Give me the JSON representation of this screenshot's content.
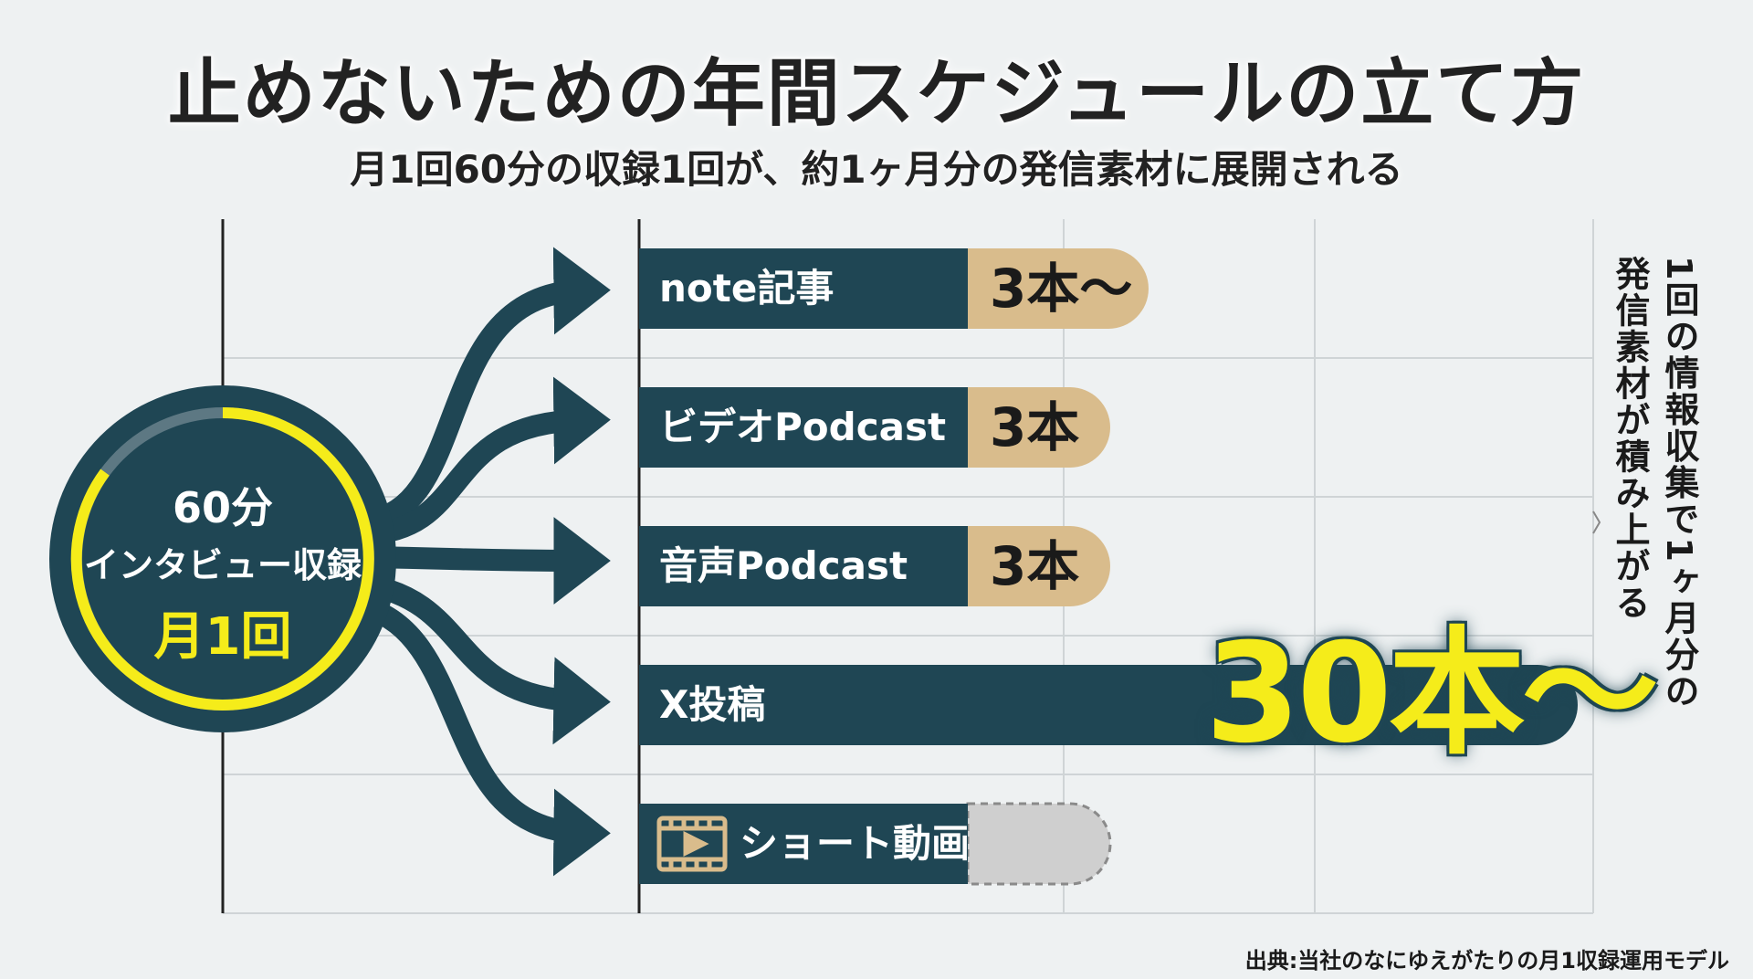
{
  "header": {
    "title": "止めないための年間スケジュールの立て方",
    "subtitle": "月1回60分の収録1回が、約1ヶ月分の発信素材に展開される"
  },
  "hub": {
    "line1": "60分",
    "line2": "インタビュー収録",
    "line3": "月1回"
  },
  "outputs": [
    {
      "label": "note記事",
      "count": "3本〜"
    },
    {
      "label": "ビデオPodcast",
      "count": "3本"
    },
    {
      "label": "音声Podcast",
      "count": "3本"
    },
    {
      "label": "X投稿",
      "count": "30本〜"
    },
    {
      "label": "ショート動画",
      "count": ""
    }
  ],
  "side_note": {
    "line1": "1回の情報収集で1ヶ月分の",
    "line2": "発信素材が積み上がる"
  },
  "source": "出典:当社のなにゆえがたりの月1収録運用モデル",
  "icons": {
    "shorts": "video-play-icon"
  },
  "colors": {
    "dark": "#1f4654",
    "accent_yellow": "#f5ec1a",
    "tan": "#d9bc8c",
    "grid": "#cfd4d6",
    "placeholder": "#cfcfcf",
    "background": "#eef1f2"
  }
}
